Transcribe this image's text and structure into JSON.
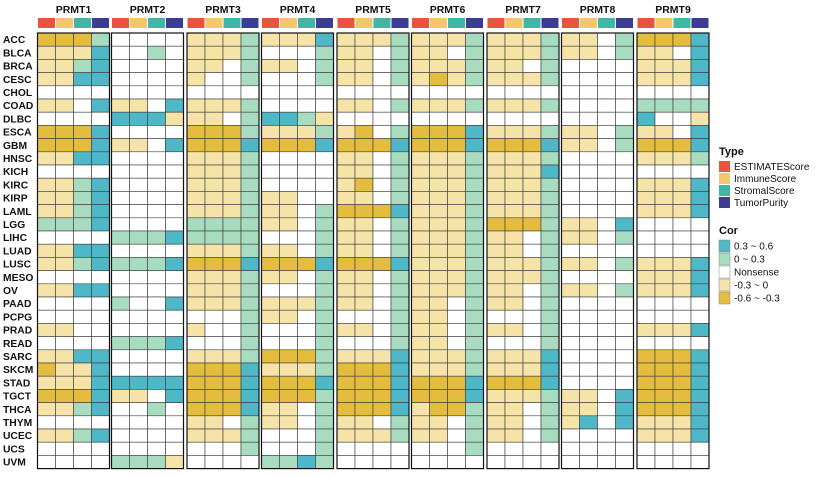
{
  "chart_data": {
    "type": "heatmap",
    "genes": [
      "PRMT1",
      "PRMT2",
      "PRMT3",
      "PRMT4",
      "PRMT5",
      "PRMT6",
      "PRMT7",
      "PRMT8",
      "PRMT9"
    ],
    "cancers": [
      "ACC",
      "BLCA",
      "BRCA",
      "CESC",
      "CHOL",
      "COAD",
      "DLBC",
      "ESCA",
      "GBM",
      "HNSC",
      "KICH",
      "KIRC",
      "KIRP",
      "LAML",
      "LGG",
      "LIHC",
      "LUAD",
      "LUSC",
      "MESO",
      "OV",
      "PAAD",
      "PCPG",
      "PRAD",
      "READ",
      "SARC",
      "SKCM",
      "STAD",
      "TGCT",
      "THCA",
      "THYM",
      "UCEC",
      "UCS",
      "UVM"
    ],
    "types": [
      "ESTIMATEScore",
      "ImmuneScore",
      "StromalScore",
      "TumorPurity"
    ],
    "cor_levels": [
      "0.3 ~ 0.6",
      "0 ~ 0.3",
      "Nonsense",
      "-0.3 ~ 0",
      "-0.6 ~ -0.3"
    ],
    "type_legend_title": "Type",
    "cor_legend_title": "Cor",
    "colors": {
      "types": [
        "#e8553a",
        "#f5c66b",
        "#40b6a6",
        "#3a3c96"
      ],
      "cor": [
        "#4fb8c8",
        "#a8dcc0",
        "#ffffff",
        "#f6e3a8",
        "#e5bd3e"
      ]
    },
    "matrix_codes": {
      "PRMT1": [
        "4441",
        "3330",
        "3310",
        "3300",
        "2222",
        "3320",
        "2222",
        "4440",
        "4440",
        "3300",
        "2222",
        "3310",
        "3310",
        "3310",
        "1110",
        "2222",
        "3300",
        "3310",
        "2222",
        "3300",
        "2222",
        "2222",
        "3322",
        "2222",
        "3300",
        "4330",
        "3330",
        "4440",
        "3310",
        "2222",
        "3310",
        "2222",
        "2222"
      ],
      "PRMT2": [
        "2222",
        "2212",
        "2222",
        "2222",
        "2222",
        "3320",
        "0003",
        "2222",
        "3320",
        "2222",
        "2222",
        "2222",
        "2222",
        "2222",
        "2222",
        "1110",
        "2222",
        "1110",
        "2222",
        "2222",
        "1220",
        "2222",
        "2222",
        "1110",
        "2222",
        "2222",
        "0000",
        "3320",
        "2212",
        "2222",
        "2222",
        "2222",
        "1113"
      ],
      "PRMT3": [
        "3331",
        "3331",
        "3321",
        "3221",
        "2222",
        "3331",
        "3321",
        "4441",
        "4440",
        "3331",
        "3331",
        "3331",
        "3331",
        "3331",
        "1111",
        "1111",
        "3331",
        "4440",
        "3331",
        "3331",
        "3331",
        "2221",
        "3221",
        "2221",
        "3331",
        "4440",
        "4440",
        "4440",
        "4440",
        "3321",
        "3331",
        "2221",
        "2222"
      ],
      "PRMT4": [
        "3330",
        "2221",
        "3321",
        "2221",
        "2222",
        "2222",
        "0013",
        "3331",
        "4440",
        "2222",
        "2222",
        "2222",
        "3322",
        "3321",
        "3321",
        "2221",
        "3321",
        "4440",
        "3321",
        "2221",
        "3331",
        "3321",
        "2221",
        "2221",
        "4441",
        "3331",
        "4440",
        "4441",
        "3321",
        "3321",
        "2221",
        "2221",
        "1101"
      ],
      "PRMT5": [
        "3331",
        "3321",
        "3321",
        "3321",
        "2222",
        "3321",
        "2222",
        "3421",
        "4440",
        "3321",
        "3321",
        "3421",
        "3321",
        "4440",
        "3321",
        "3321",
        "3321",
        "4440",
        "3321",
        "3321",
        "3321",
        "2221",
        "3321",
        "2221",
        "3330",
        "4440",
        "4440",
        "4440",
        "4440",
        "3321",
        "3331",
        "2222",
        "2222"
      ],
      "PRMT6": [
        "3331",
        "3321",
        "3331",
        "3431",
        "2222",
        "3331",
        "2222",
        "4440",
        "4440",
        "3331",
        "3331",
        "3331",
        "3331",
        "3331",
        "3331",
        "3331",
        "3331",
        "3331",
        "3331",
        "3331",
        "3321",
        "3321",
        "3321",
        "3321",
        "3331",
        "3331",
        "4440",
        "4440",
        "3441",
        "3321",
        "3321",
        "2221",
        "2222"
      ],
      "PRMT7": [
        "3331",
        "3331",
        "3321",
        "3331",
        "2222",
        "3331",
        "2222",
        "3331",
        "4440",
        "3331",
        "3330",
        "3331",
        "3331",
        "3331",
        "4441",
        "3321",
        "3321",
        "3331",
        "3331",
        "3321",
        "3321",
        "2221",
        "3321",
        "2221",
        "3330",
        "3330",
        "4440",
        "3331",
        "3321",
        "3321",
        "3321",
        "2222",
        "2222"
      ],
      "PRMT8": [
        "3321",
        "3321",
        "2222",
        "2222",
        "2222",
        "2222",
        "2222",
        "3321",
        "3321",
        "2222",
        "2222",
        "2222",
        "2222",
        "2222",
        "3320",
        "3321",
        "2222",
        "3321",
        "2222",
        "3321",
        "2222",
        "2222",
        "2222",
        "2222",
        "2222",
        "2222",
        "2222",
        "3320",
        "3320",
        "3020",
        "2222",
        "2222",
        "2222"
      ],
      "PRMT9": [
        "4440",
        "3320",
        "3330",
        "3330",
        "2222",
        "1111",
        "0223",
        "3320",
        "4440",
        "3331",
        "2222",
        "3330",
        "3330",
        "3330",
        "2222",
        "2222",
        "2222",
        "3330",
        "3330",
        "3330",
        "2222",
        "2222",
        "3330",
        "2222",
        "4440",
        "4440",
        "4440",
        "4440",
        "4440",
        "3330",
        "3330",
        "2222",
        "2222"
      ]
    }
  }
}
